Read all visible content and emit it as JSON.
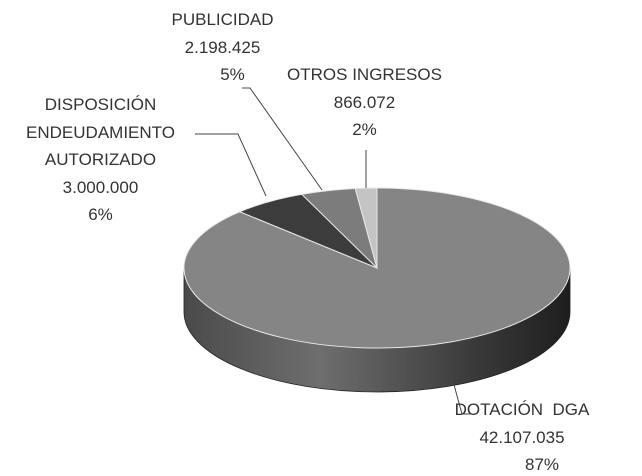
{
  "chart_data": {
    "type": "pie",
    "categories": [
      "DOTACIÓN  DGA",
      "DISPOSICIÓN ENDEUDAMIENTO AUTORIZADO",
      "PUBLICIDAD",
      "OTROS INGRESOS"
    ],
    "values": [
      42107035,
      3000000,
      2198425,
      866072
    ],
    "value_labels": [
      "42.107.035",
      "3.000.000",
      "2.198.425",
      "866.072"
    ],
    "percentage_labels": [
      "87%",
      "6%",
      "5%",
      "2%"
    ],
    "colors": [
      "#858585",
      "#3c3c3c",
      "#7c7c7c",
      "#c4c4c4"
    ]
  }
}
